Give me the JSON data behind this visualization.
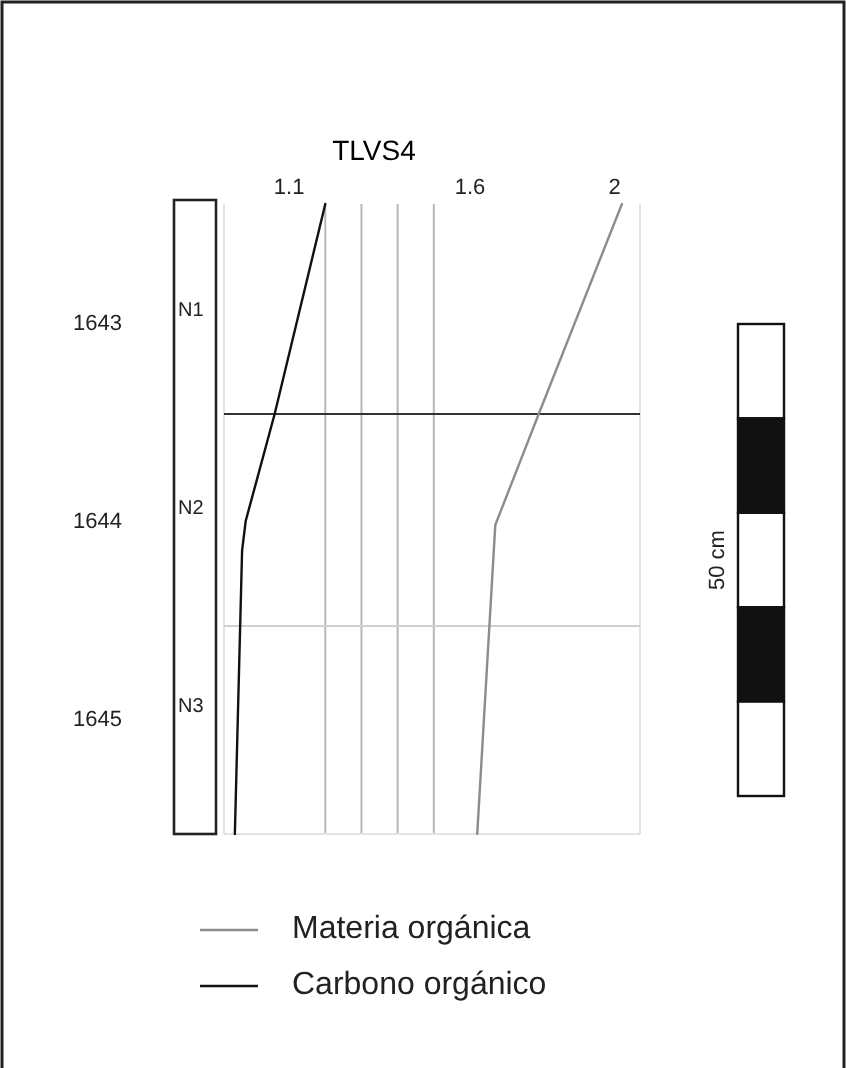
{
  "chart_data": {
    "type": "line",
    "title": "TLVS4",
    "ylim": [
      1645.58,
      1642.4
    ],
    "yticks": [
      1643,
      1644,
      1645
    ],
    "xlim": [
      0.92,
      2.07
    ],
    "xticks": [
      1.1,
      {
        "value": 1.2,
        "label": null
      },
      {
        "value": 1.3,
        "label": null
      },
      {
        "value": 1.4,
        "label": null
      },
      {
        "value": 1.5,
        "label": null
      },
      1.6,
      2
    ],
    "grid": "x",
    "legend": "bottom",
    "line_style": "solid",
    "marker": "none",
    "series": [
      {
        "name": "Materia orgánica",
        "color": "#8c8c8c",
        "x": [
          2.02,
          1.79,
          1.67,
          1.62
        ],
        "values": [
          1642.4,
          1643.46,
          1644.02,
          1645.58
        ]
      },
      {
        "name": "Carbono orgánico",
        "color": "#111111",
        "x": [
          1.2,
          1.06,
          0.98,
          0.97,
          0.95
        ],
        "values": [
          1642.4,
          1643.46,
          1644,
          1644.15,
          1645.58
        ]
      }
    ],
    "ref_lines": [
      {
        "axis": "y",
        "value": 1643.46,
        "color": "#333333"
      },
      {
        "axis": "y",
        "value": 1644.53,
        "color": "#d0d0d0"
      }
    ],
    "annotations": [
      "N1",
      "N2",
      "N3",
      "50 cm"
    ]
  }
}
